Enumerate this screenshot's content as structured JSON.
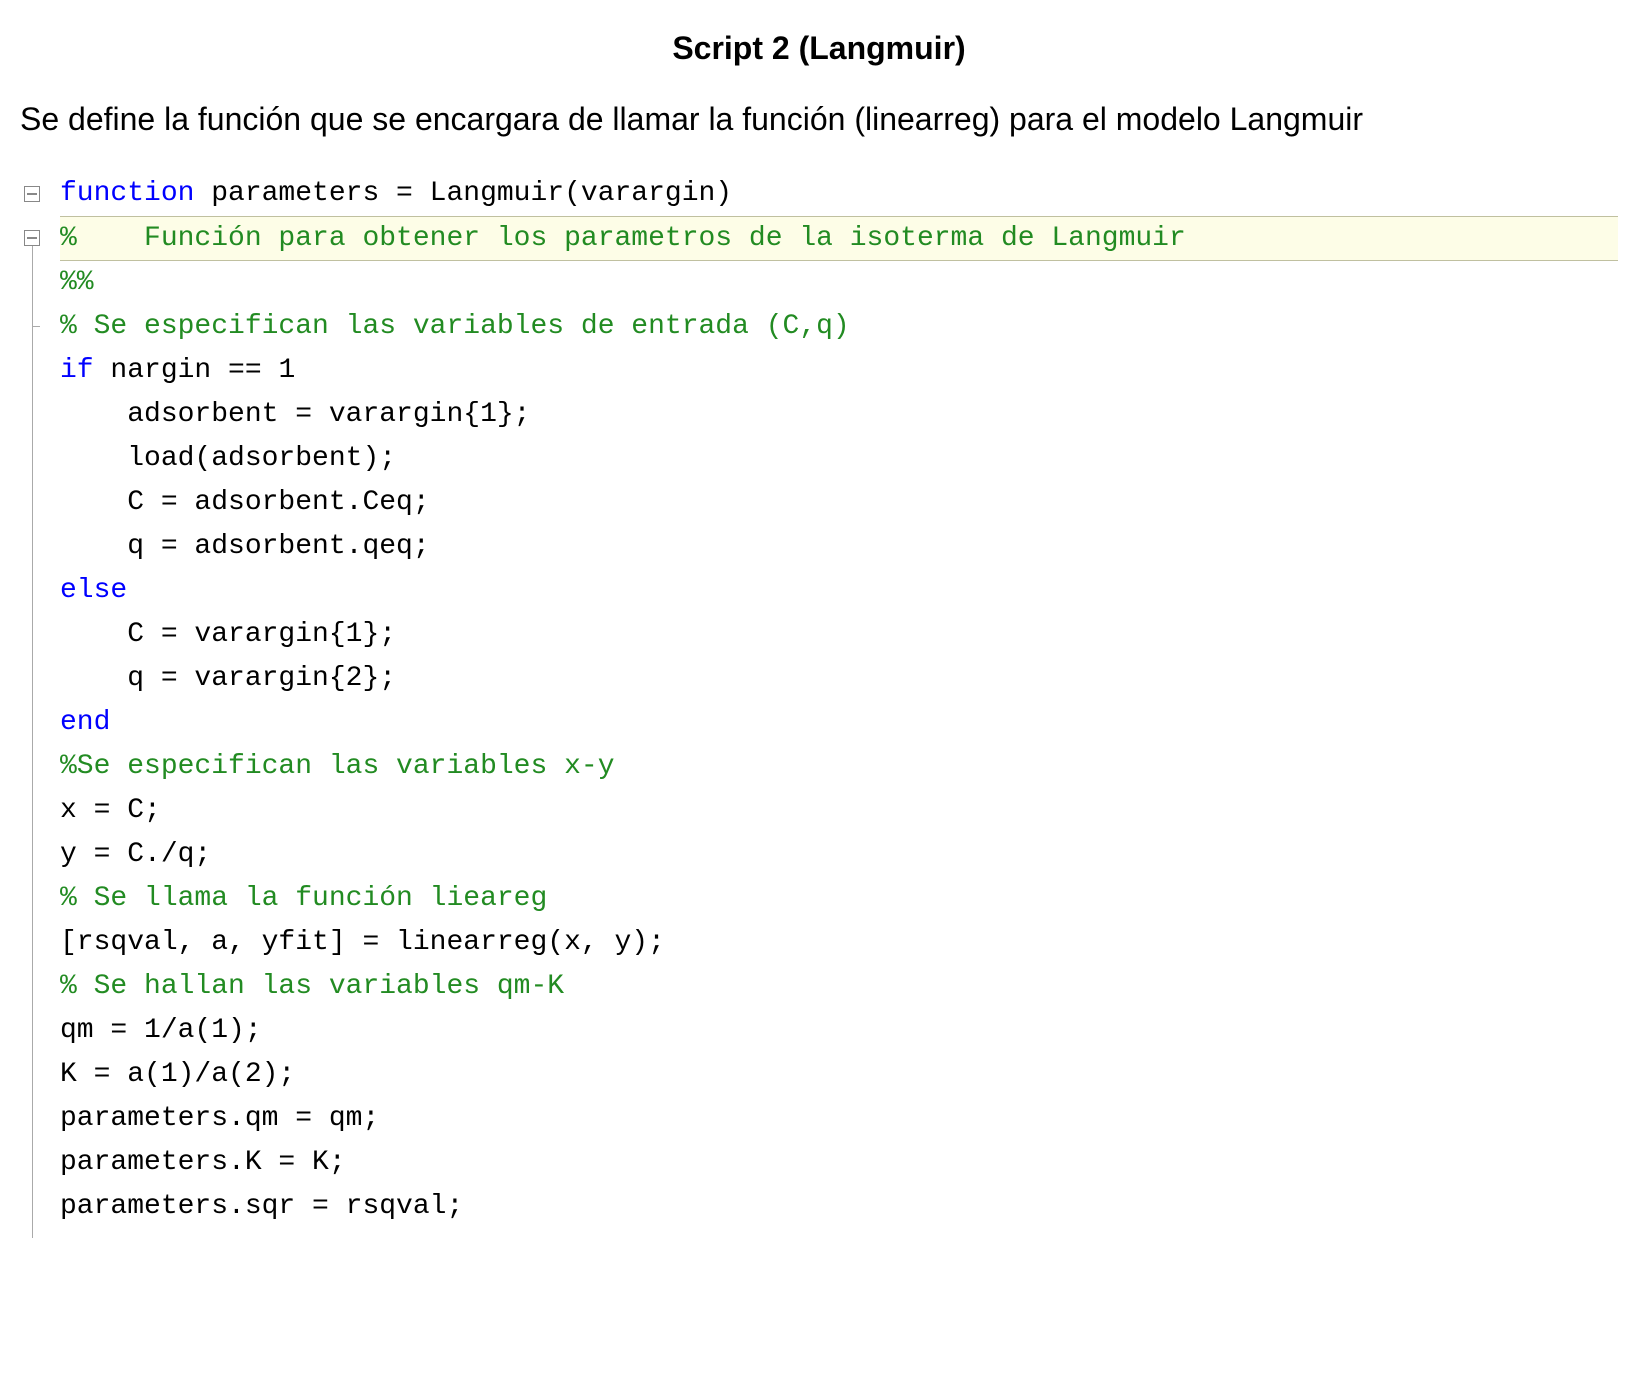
{
  "title": "Script 2 (Langmuir)",
  "description": "Se define la función que se encargara de llamar la función (linearreg) para el modelo Langmuir",
  "code": {
    "colors": {
      "keyword": "#0000ff",
      "comment": "#228b22",
      "text": "#000000",
      "highlight_bg": "#fdfde7",
      "gutter_border": "#888888",
      "background": "#ffffff"
    },
    "font_family": "Courier New",
    "font_size_pt": 21,
    "lines": [
      {
        "tokens": [
          {
            "t": "function",
            "c": "kw-function"
          },
          {
            "t": " parameters = Langmuir(varargin)",
            "c": "identifier"
          }
        ],
        "fold": true
      },
      {
        "tokens": [
          {
            "t": "%    Función para obtener los parametros de la isoterma de Langmuir",
            "c": "comment"
          }
        ],
        "highlight": true,
        "fold": true
      },
      {
        "tokens": [
          {
            "t": "%%",
            "c": "comment"
          }
        ]
      },
      {
        "tokens": [
          {
            "t": "% Se especifican las variables de entrada (C,q)",
            "c": "comment"
          }
        ],
        "tick": true
      },
      {
        "tokens": [
          {
            "t": "if",
            "c": "kw-if"
          },
          {
            "t": " nargin == 1",
            "c": "identifier"
          }
        ]
      },
      {
        "tokens": [
          {
            "t": "    adsorbent = varargin{1};",
            "c": "identifier"
          }
        ]
      },
      {
        "tokens": [
          {
            "t": "    load(adsorbent);",
            "c": "identifier"
          }
        ]
      },
      {
        "tokens": [
          {
            "t": "    C = adsorbent.Ceq;",
            "c": "identifier"
          }
        ]
      },
      {
        "tokens": [
          {
            "t": "    q = adsorbent.qeq;",
            "c": "identifier"
          }
        ]
      },
      {
        "tokens": [
          {
            "t": "else",
            "c": "kw-else"
          }
        ]
      },
      {
        "tokens": [
          {
            "t": "    C = varargin{1};",
            "c": "identifier"
          }
        ]
      },
      {
        "tokens": [
          {
            "t": "    q = varargin{2};",
            "c": "identifier"
          }
        ]
      },
      {
        "tokens": [
          {
            "t": "end",
            "c": "kw-end"
          }
        ]
      },
      {
        "tokens": [
          {
            "t": "%Se especifican las variables x-y",
            "c": "comment"
          }
        ]
      },
      {
        "tokens": [
          {
            "t": "x = C;",
            "c": "identifier"
          }
        ]
      },
      {
        "tokens": [
          {
            "t": "y = C./q;",
            "c": "identifier"
          }
        ]
      },
      {
        "tokens": [
          {
            "t": "% Se llama la función lieareg",
            "c": "comment"
          }
        ]
      },
      {
        "tokens": [
          {
            "t": "[rsqval, a, yfit] = linearreg(x, y);",
            "c": "identifier"
          }
        ]
      },
      {
        "tokens": [
          {
            "t": "% Se hallan las variables qm-K",
            "c": "comment"
          }
        ]
      },
      {
        "tokens": [
          {
            "t": "qm = 1/a(1);",
            "c": "identifier"
          }
        ]
      },
      {
        "tokens": [
          {
            "t": "K = a(1)/a(2);",
            "c": "identifier"
          }
        ]
      },
      {
        "tokens": [
          {
            "t": "parameters.qm = qm;",
            "c": "identifier"
          }
        ]
      },
      {
        "tokens": [
          {
            "t": "parameters.K = K;",
            "c": "identifier"
          }
        ]
      },
      {
        "tokens": [
          {
            "t": "parameters.sqr = rsqval;",
            "c": "identifier"
          }
        ]
      }
    ]
  }
}
